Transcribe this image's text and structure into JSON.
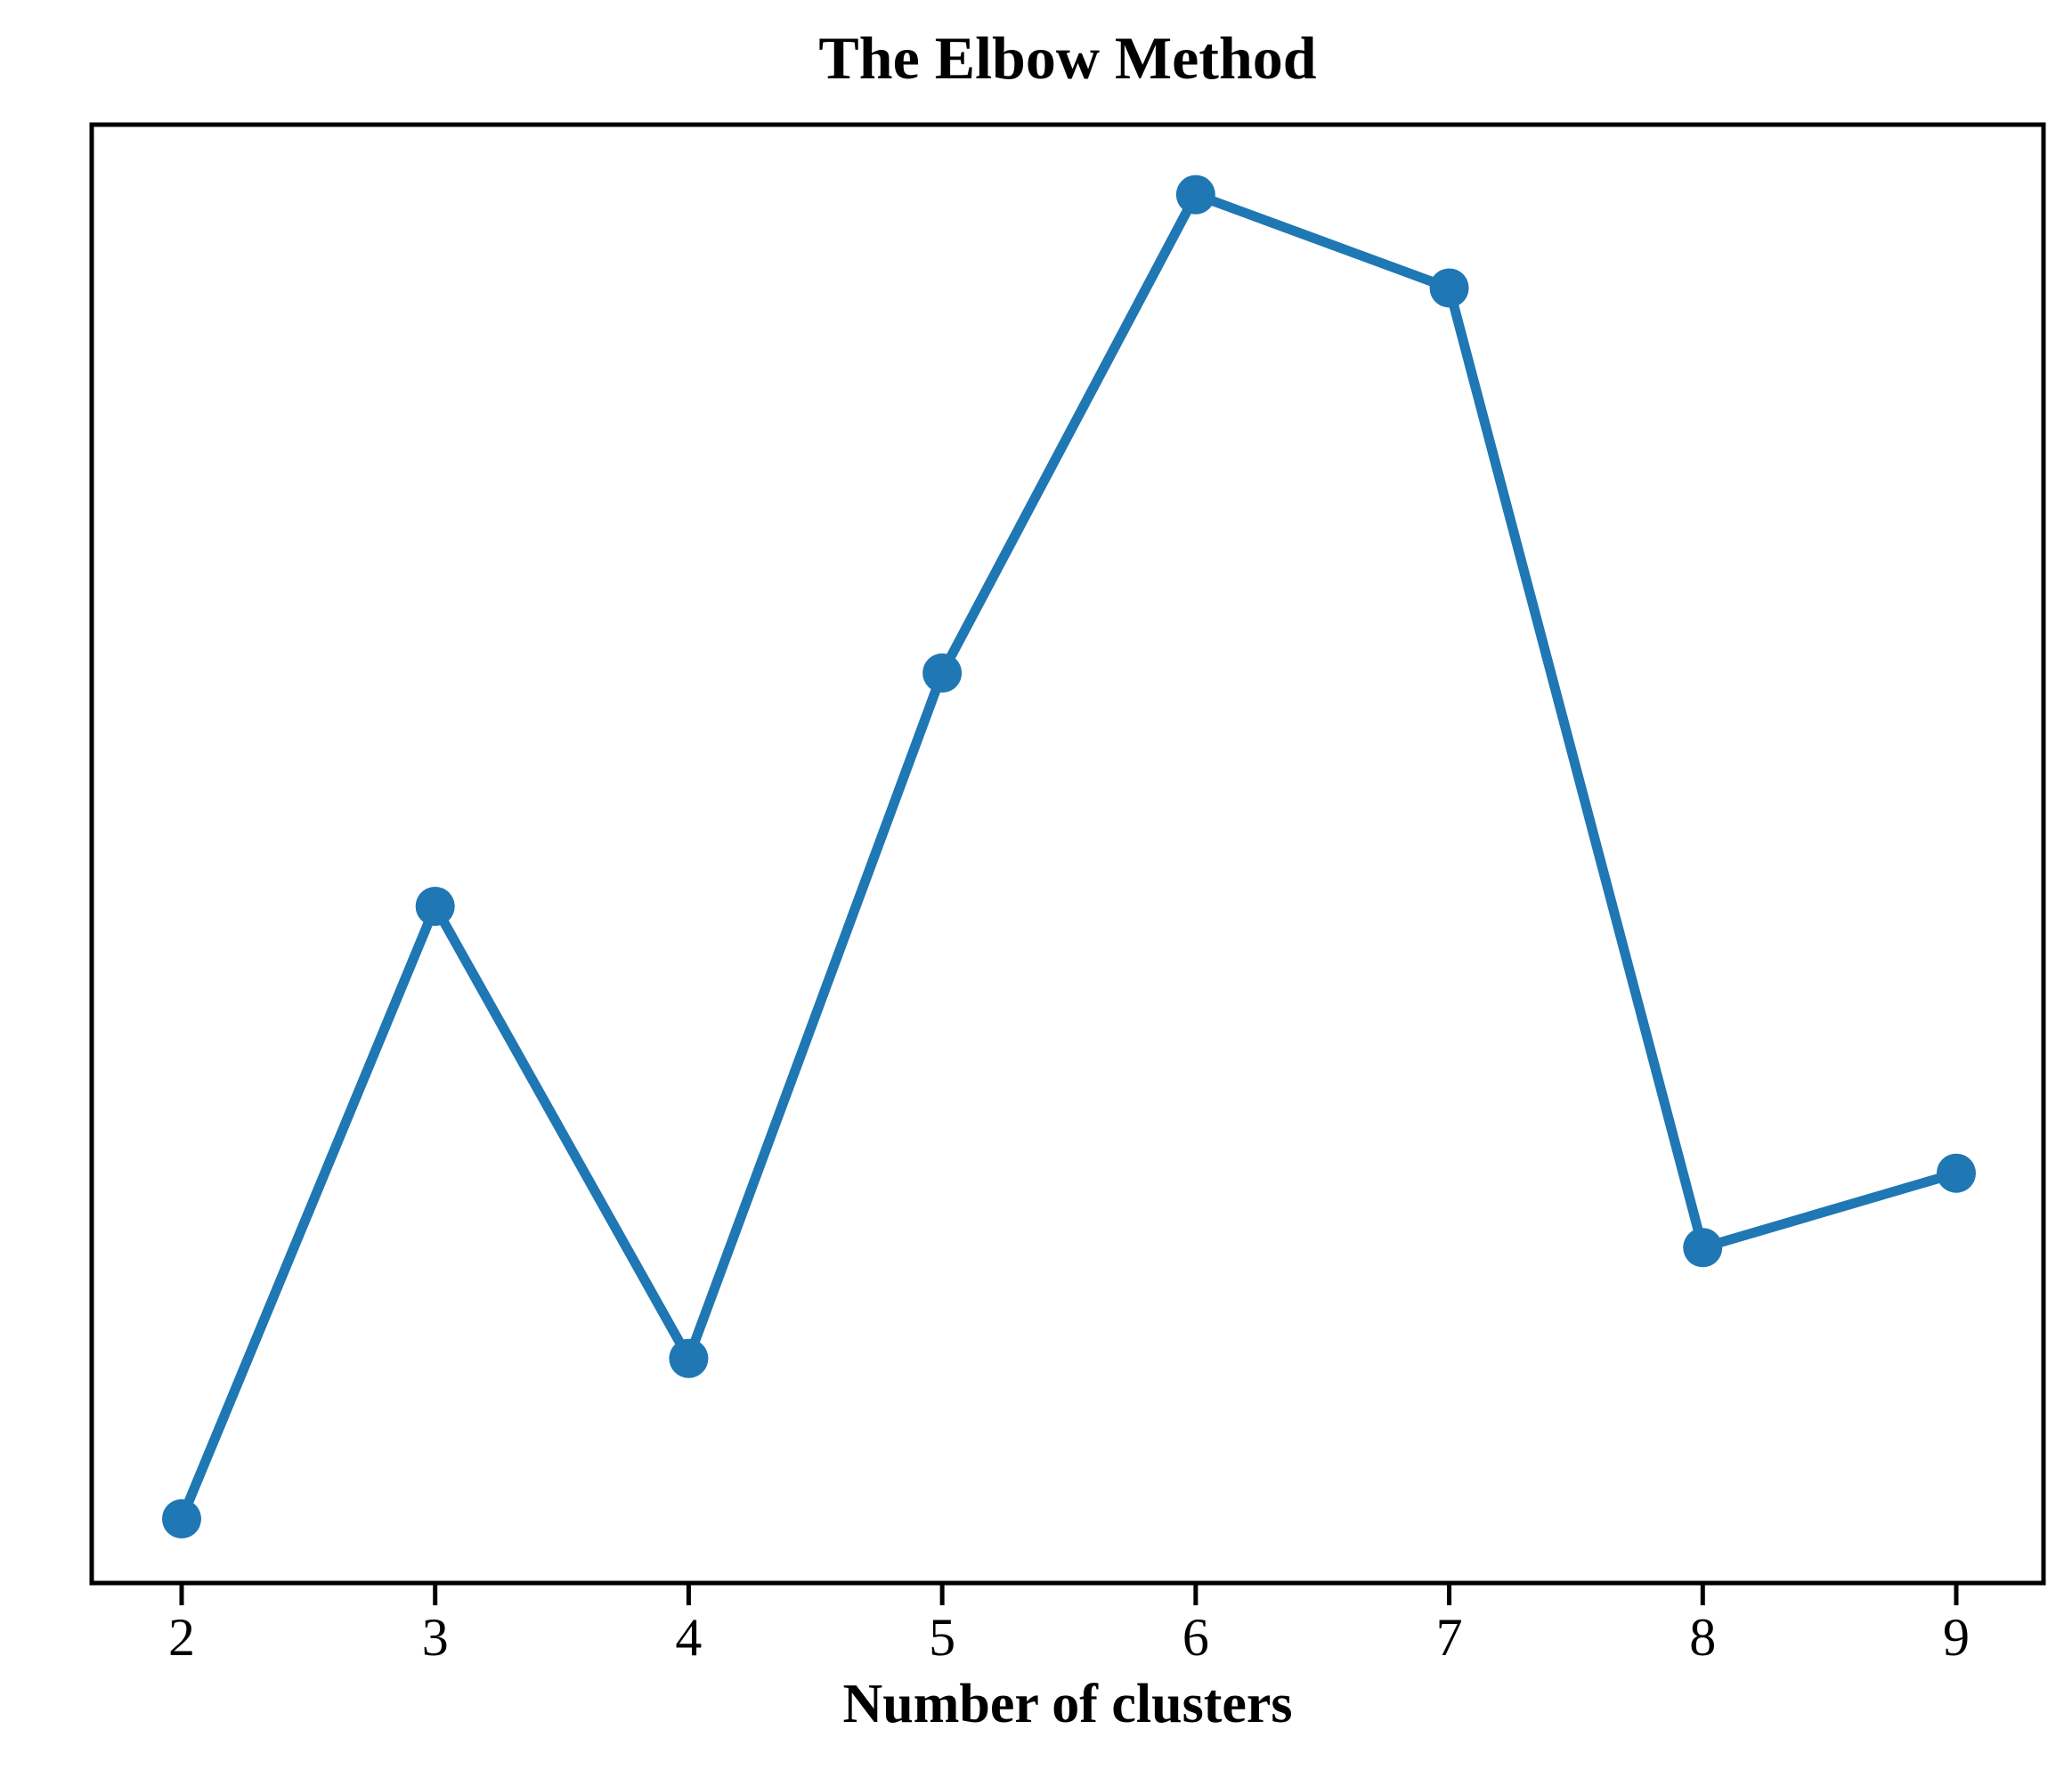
{
  "chart_data": {
    "type": "line",
    "title": "The Elbow Method",
    "xlabel": "Number of clusters",
    "ylabel": "",
    "x": [
      2,
      3,
      4,
      5,
      6,
      7,
      8,
      9
    ],
    "x_tick_labels": [
      "2",
      "3",
      "4",
      "5",
      "6",
      "7",
      "8",
      "9"
    ],
    "y_relative": [
      0.044,
      0.464,
      0.154,
      0.624,
      0.952,
      0.888,
      0.23,
      0.281
    ],
    "y_axis": "no ticks or labels shown; y_relative gives each point's height as a fraction of the plot-box height above the x-axis",
    "series_count": 1,
    "line_color": "#1f77b4",
    "marker": "filled-circle",
    "axis_color": "#000000",
    "grid": false,
    "legend_position": "none"
  }
}
